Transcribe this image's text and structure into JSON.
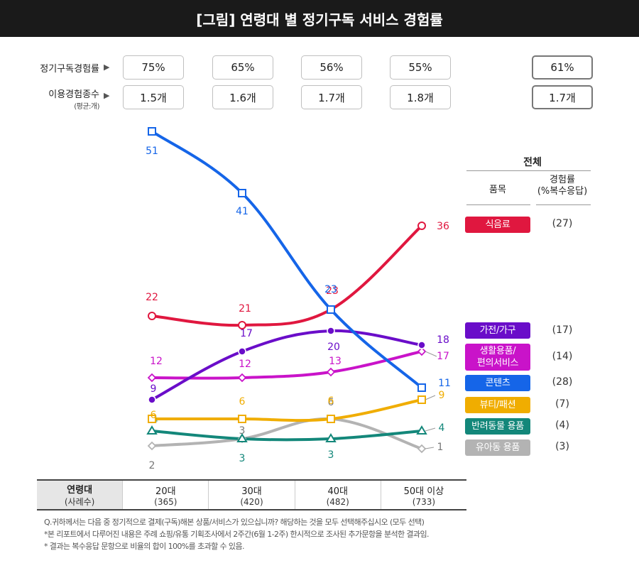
{
  "title": "[그림] 연령대 별 정기구독 서비스 경험률",
  "top_rows": {
    "experience_label": "정기구독경험률",
    "count_label": "이용경험종수",
    "count_sublabel": "(평균:개)",
    "experience_values": [
      "75%",
      "65%",
      "56%",
      "55%"
    ],
    "experience_total": "61%",
    "count_values": [
      "1.5개",
      "1.6개",
      "1.7개",
      "1.8개"
    ],
    "count_total": "1.7개"
  },
  "legend_header": {
    "total": "전체",
    "item_col": "품목",
    "rate_col": "경험률",
    "rate_col_sub": "(%복수응답)"
  },
  "chart_data": {
    "type": "line",
    "title": "[그림] 연령대 별 정기구독 서비스 경험률",
    "categories": [
      "20대",
      "30대",
      "40대",
      "50대 이상"
    ],
    "sample_sizes": [
      "(365)",
      "(420)",
      "(482)",
      "(733)"
    ],
    "xlabel": "연령대",
    "xlabel_sub": "(사례수)",
    "grid": false,
    "legend_position": "right",
    "series": [
      {
        "name": "식음료",
        "values": [
          22,
          21,
          23,
          36
        ],
        "total": "(27)",
        "color": "#e0173f",
        "marker": "circle-open"
      },
      {
        "name": "가전/가구",
        "values": [
          9,
          17,
          20,
          18
        ],
        "total": "(17)",
        "color": "#6a0dc9",
        "marker": "circle-filled"
      },
      {
        "name": "생활용품/편의서비스",
        "name_lines": [
          "생활용품/",
          "편의서비스"
        ],
        "values": [
          12,
          12,
          13,
          17
        ],
        "total": "(14)",
        "color": "#c913c9",
        "marker": "diamond-open"
      },
      {
        "name": "콘텐츠",
        "values": [
          51,
          41,
          23,
          11
        ],
        "total": "(28)",
        "color": "#1565e8",
        "marker": "square-open"
      },
      {
        "name": "뷰티/패션",
        "values": [
          6,
          6,
          6,
          9
        ],
        "total": "(7)",
        "color": "#f0ad00",
        "marker": "square-open"
      },
      {
        "name": "반려동물 용품",
        "values": [
          4,
          3,
          3,
          4
        ],
        "total": "(4)",
        "color": "#13877a",
        "marker": "triangle-open"
      },
      {
        "name": "유아동 용품",
        "values": [
          2,
          3,
          6,
          1
        ],
        "total": "(3)",
        "color": "#b3b3b3",
        "marker": "diamond-open"
      }
    ]
  },
  "notes": [
    "Q.귀하께서는 다음 중 정기적으로 결제(구독)해본 상품/서비스가 있으십니까? 해당하는 것을 모두 선택해주십시오 (모두 선택)",
    "*본 리포트에서 다루어진 내용은 주례 쇼핑/유통 기획조사에서 2주간(6월 1-2주) 한시적으로 조사된 추가문항을 분석한 결과임.",
    "* 결과는 복수응답 문항으로 비율의 합이 100%를 초과할 수 있음."
  ]
}
